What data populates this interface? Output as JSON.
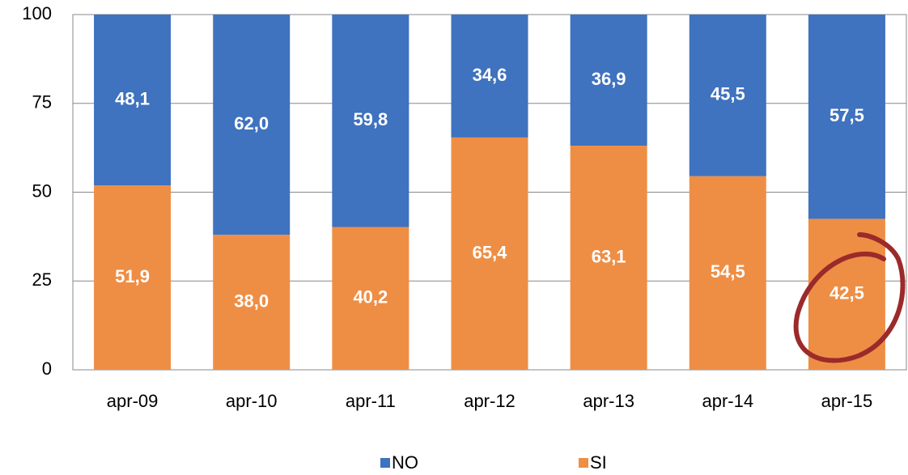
{
  "chart_data": {
    "type": "stacked_bar",
    "categories": [
      "apr-09",
      "apr-10",
      "apr-11",
      "apr-12",
      "apr-13",
      "apr-14",
      "apr-15"
    ],
    "series": [
      {
        "name": "NO",
        "color": "#3f72bf",
        "values": [
          48.1,
          62.0,
          59.8,
          34.6,
          36.9,
          45.5,
          57.5
        ],
        "value_labels": [
          "48,1",
          "62,0",
          "59,8",
          "34,6",
          "36,9",
          "45,5",
          "57,5"
        ]
      },
      {
        "name": "SI",
        "color": "#ee8e45",
        "values": [
          51.9,
          38.0,
          40.2,
          65.4,
          63.1,
          54.5,
          42.5
        ],
        "value_labels": [
          "51,9",
          "38,0",
          "40,2",
          "65,4",
          "63,1",
          "54,5",
          "42,5"
        ]
      }
    ],
    "ylim": [
      0,
      100
    ],
    "yticks": [
      0,
      25,
      50,
      75,
      100
    ],
    "grid": true,
    "legend": "bottom"
  }
}
